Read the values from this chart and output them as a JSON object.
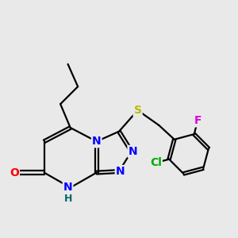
{
  "background_color": "#e9e9e9",
  "atom_colors": {
    "N": "#0000ff",
    "O": "#ff0000",
    "S": "#bbbb00",
    "Cl": "#00aa00",
    "F": "#dd00dd",
    "C": "#000000",
    "H": "#006666"
  },
  "bond_color": "#000000",
  "bond_width": 1.6,
  "font_size_atom": 10
}
